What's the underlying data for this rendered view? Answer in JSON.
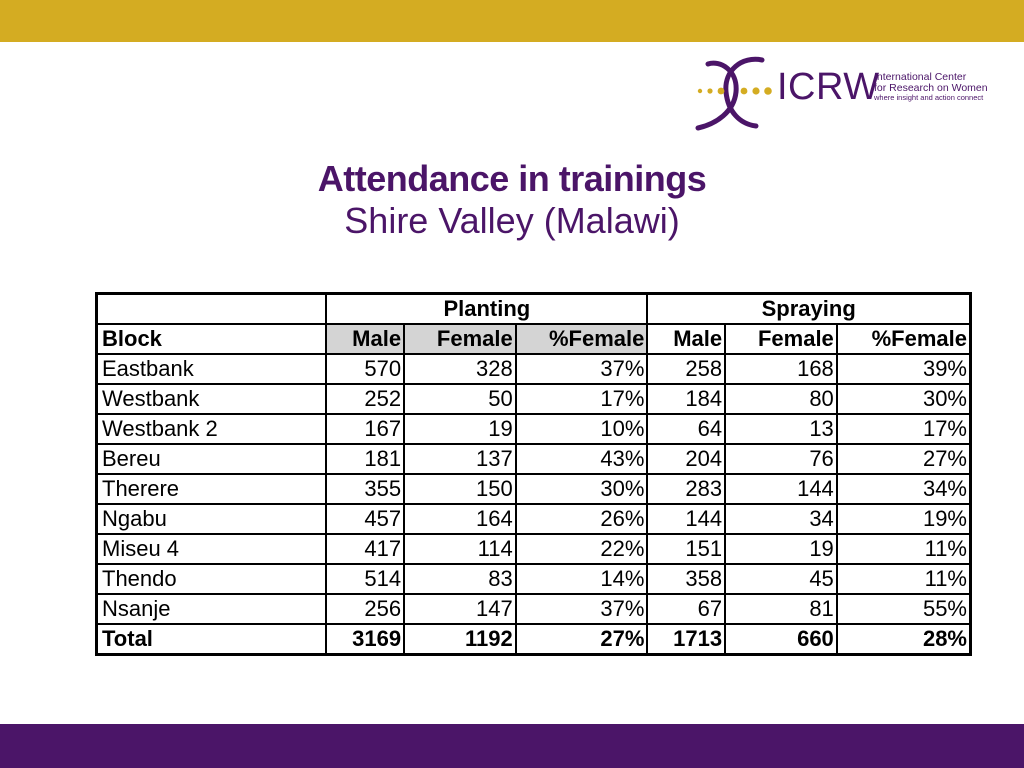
{
  "title": "Attendance in trainings",
  "subtitle": "Shire Valley (Malawi)",
  "logo": {
    "wordmark": "ICRW",
    "tagline_1": "International Center",
    "tagline_2": "for Research on Women",
    "tagline_3": "where insight and action connect",
    "mark_icon": "icrw-swoop-logo-icon"
  },
  "colors": {
    "gold_band": "#d4ac22",
    "purple_band": "#4b1568",
    "title": "#4b1568",
    "subheader_shade": "#d4d4d4"
  },
  "table": {
    "groups": [
      "",
      "Planting",
      "Spraying"
    ],
    "subheaders": [
      "Block",
      "Male",
      "Female",
      "%Female",
      "Male",
      "Female",
      "%Female"
    ],
    "rows": [
      [
        "Eastbank",
        "570",
        "328",
        "37%",
        "258",
        "168",
        "39%"
      ],
      [
        "Westbank",
        "252",
        "50",
        "17%",
        "184",
        "80",
        "30%"
      ],
      [
        "Westbank 2",
        "167",
        "19",
        "10%",
        "64",
        "13",
        "17%"
      ],
      [
        "Bereu",
        "181",
        "137",
        "43%",
        "204",
        "76",
        "27%"
      ],
      [
        "Therere",
        "355",
        "150",
        "30%",
        "283",
        "144",
        "34%"
      ],
      [
        "Ngabu",
        "457",
        "164",
        "26%",
        "144",
        "34",
        "19%"
      ],
      [
        "Miseu 4",
        "417",
        "114",
        "22%",
        "151",
        "19",
        "11%"
      ],
      [
        "Thendo",
        "514",
        "83",
        "14%",
        "358",
        "45",
        "11%"
      ],
      [
        "Nsanje",
        "256",
        "147",
        "37%",
        "67",
        "81",
        "55%"
      ]
    ],
    "total": [
      "Total",
      "3169",
      "1192",
      "27%",
      "1713",
      "660",
      "28%"
    ]
  }
}
